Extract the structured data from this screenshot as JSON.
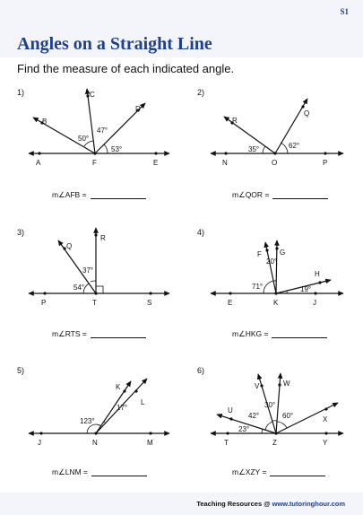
{
  "header": {
    "sheet_code": "S1",
    "title": "Angles on a Straight Line"
  },
  "instructions": "Find the measure of each indicated angle.",
  "problems": [
    {
      "number": "1)",
      "points": [
        "A",
        "F",
        "E",
        "B",
        "C",
        "D"
      ],
      "angles": [
        "50°",
        "47°",
        "53°"
      ],
      "answer_label": "m∠AFB ="
    },
    {
      "number": "2)",
      "points": [
        "N",
        "O",
        "P",
        "R",
        "Q"
      ],
      "angles": [
        "35°",
        "62°"
      ],
      "answer_label": "m∠QOR ="
    },
    {
      "number": "3)",
      "points": [
        "P",
        "T",
        "S",
        "Q",
        "R"
      ],
      "angles": [
        "54°",
        "37°"
      ],
      "answer_label": "m∠RTS ="
    },
    {
      "number": "4)",
      "points": [
        "E",
        "K",
        "J",
        "F",
        "G",
        "H"
      ],
      "angles": [
        "71°",
        "20°",
        "19°"
      ],
      "answer_label": "m∠HKG ="
    },
    {
      "number": "5)",
      "points": [
        "J",
        "N",
        "M",
        "K",
        "L"
      ],
      "angles": [
        "123°",
        "17°"
      ],
      "answer_label": "m∠LNM ="
    },
    {
      "number": "6)",
      "points": [
        "T",
        "Z",
        "Y",
        "U",
        "V",
        "W",
        "X"
      ],
      "angles": [
        "23°",
        "42°",
        "30°",
        "60°"
      ],
      "answer_label": "m∠XZY ="
    }
  ],
  "footer": {
    "label": "Teaching Resources @",
    "site": "www.tutoringhour.com"
  }
}
